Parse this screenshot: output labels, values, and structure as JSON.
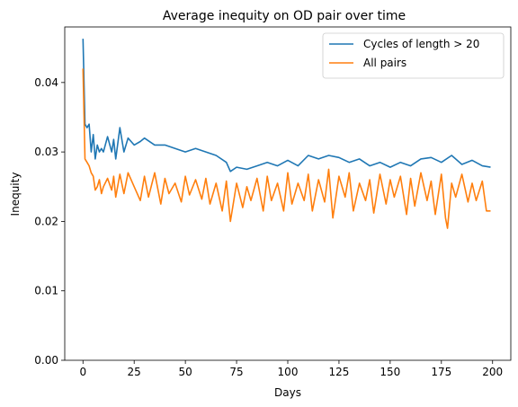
{
  "chart_data": {
    "type": "line",
    "title": "Average inequity on OD pair over time",
    "xlabel": "Days",
    "ylabel": "Inequity",
    "xlim": [
      -8.9,
      208.9
    ],
    "ylim": [
      0,
      0.048
    ],
    "xticks": [
      0,
      25,
      50,
      75,
      100,
      125,
      150,
      175,
      200
    ],
    "yticks": [
      0.0,
      0.01,
      0.02,
      0.03,
      0.04
    ],
    "ytick_labels": [
      "0.00",
      "0.01",
      "0.02",
      "0.03",
      "0.04"
    ],
    "grid": false,
    "legend_position": "top-right",
    "series": [
      {
        "name": "Cycles of length > 20",
        "color": "#1f77b4",
        "x": [
          0,
          1,
          2,
          3,
          4,
          5,
          6,
          7,
          8,
          9,
          10,
          12,
          14,
          15,
          16,
          18,
          20,
          22,
          25,
          28,
          30,
          35,
          40,
          45,
          50,
          55,
          60,
          65,
          70,
          72,
          75,
          80,
          85,
          90,
          95,
          100,
          105,
          110,
          115,
          120,
          125,
          130,
          135,
          140,
          145,
          150,
          155,
          160,
          165,
          170,
          175,
          180,
          185,
          190,
          195,
          199
        ],
        "values": [
          0.0463,
          0.034,
          0.0335,
          0.034,
          0.03,
          0.0325,
          0.029,
          0.031,
          0.03,
          0.0305,
          0.03,
          0.0322,
          0.03,
          0.0318,
          0.029,
          0.0335,
          0.03,
          0.032,
          0.031,
          0.0315,
          0.032,
          0.031,
          0.031,
          0.0305,
          0.03,
          0.0305,
          0.03,
          0.0295,
          0.0285,
          0.0272,
          0.0278,
          0.0275,
          0.028,
          0.0285,
          0.028,
          0.0288,
          0.028,
          0.0295,
          0.029,
          0.0295,
          0.0292,
          0.0285,
          0.029,
          0.028,
          0.0285,
          0.0278,
          0.0285,
          0.028,
          0.029,
          0.0292,
          0.0285,
          0.0295,
          0.0282,
          0.0288,
          0.028,
          0.0278
        ]
      },
      {
        "name": "All pairs",
        "color": "#ff7f0e",
        "x": [
          0,
          1,
          2,
          3,
          4,
          5,
          6,
          7,
          8,
          9,
          10,
          12,
          14,
          15,
          16,
          18,
          20,
          22,
          25,
          28,
          30,
          32,
          35,
          38,
          40,
          42,
          45,
          48,
          50,
          52,
          55,
          58,
          60,
          62,
          65,
          68,
          70,
          72,
          75,
          78,
          80,
          82,
          85,
          88,
          90,
          92,
          95,
          98,
          100,
          102,
          105,
          108,
          110,
          112,
          115,
          118,
          120,
          122,
          125,
          128,
          130,
          132,
          135,
          138,
          140,
          142,
          145,
          148,
          150,
          152,
          155,
          158,
          160,
          162,
          165,
          168,
          170,
          172,
          175,
          177,
          178,
          180,
          182,
          185,
          188,
          190,
          192,
          195,
          197,
          199
        ],
        "values": [
          0.042,
          0.029,
          0.0285,
          0.028,
          0.027,
          0.0265,
          0.0245,
          0.025,
          0.026,
          0.024,
          0.025,
          0.0262,
          0.0245,
          0.0265,
          0.0235,
          0.0268,
          0.024,
          0.027,
          0.025,
          0.023,
          0.0265,
          0.0235,
          0.027,
          0.0225,
          0.0262,
          0.024,
          0.0255,
          0.0228,
          0.0265,
          0.0238,
          0.026,
          0.0232,
          0.0262,
          0.0225,
          0.0255,
          0.0215,
          0.0258,
          0.02,
          0.0255,
          0.022,
          0.025,
          0.023,
          0.0262,
          0.0215,
          0.0265,
          0.023,
          0.0255,
          0.0215,
          0.027,
          0.0225,
          0.0255,
          0.023,
          0.0268,
          0.0215,
          0.026,
          0.0228,
          0.0275,
          0.0205,
          0.0265,
          0.0235,
          0.027,
          0.0215,
          0.0255,
          0.023,
          0.026,
          0.0212,
          0.0268,
          0.0225,
          0.026,
          0.0235,
          0.0265,
          0.021,
          0.0262,
          0.0222,
          0.027,
          0.023,
          0.0258,
          0.021,
          0.0268,
          0.0205,
          0.019,
          0.0255,
          0.0235,
          0.0268,
          0.0228,
          0.0255,
          0.023,
          0.0258,
          0.0215,
          0.0215
        ]
      }
    ]
  }
}
